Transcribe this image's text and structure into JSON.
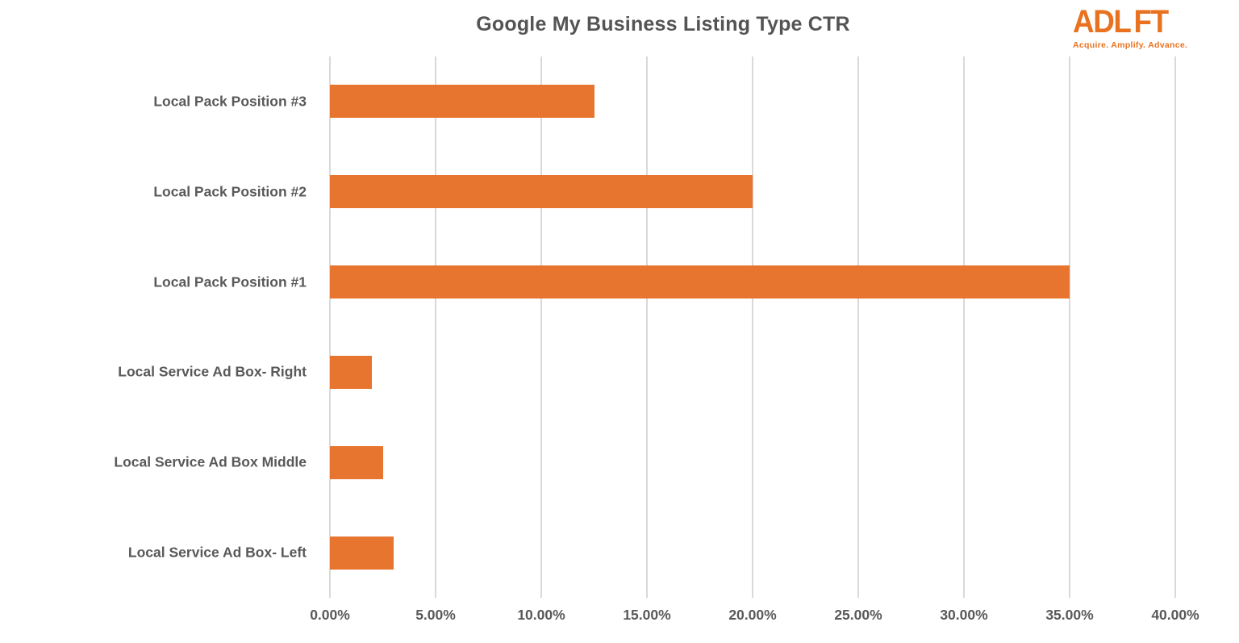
{
  "title": "Google My Business Listing Type CTR",
  "logo": {
    "wordmark_left": "ADL",
    "wordmark_right": "FT",
    "arrow_icon": "up-arrow",
    "tagline": "Acquire. Amplify. Advance.",
    "color": "#E8721F"
  },
  "chart_data": {
    "type": "bar",
    "orientation": "horizontal",
    "title": "Google My Business Listing Type CTR",
    "categories": [
      "Local Pack Position #3",
      "Local Pack Position #2",
      "Local Pack Position #1",
      "Local Service Ad Box- Right",
      "Local Service Ad Box Middle",
      "Local Service Ad Box- Left"
    ],
    "values": [
      12.5,
      20,
      35,
      2,
      2.5,
      3
    ],
    "value_unit": "%",
    "xlabel": "",
    "ylabel": "",
    "xlim": [
      0,
      40
    ],
    "x_ticks": [
      0,
      5,
      10,
      15,
      20,
      25,
      30,
      35,
      40
    ],
    "x_tick_labels": [
      "0.00%",
      "5.00%",
      "10.00%",
      "15.00%",
      "20.00%",
      "25.00%",
      "30.00%",
      "35.00%",
      "40.00%"
    ],
    "grid": true,
    "legend": false,
    "bar_color": "#E8752F",
    "gridline_color": "#D9D9D9",
    "axis_label_color": "#595959",
    "title_color": "#545454"
  }
}
